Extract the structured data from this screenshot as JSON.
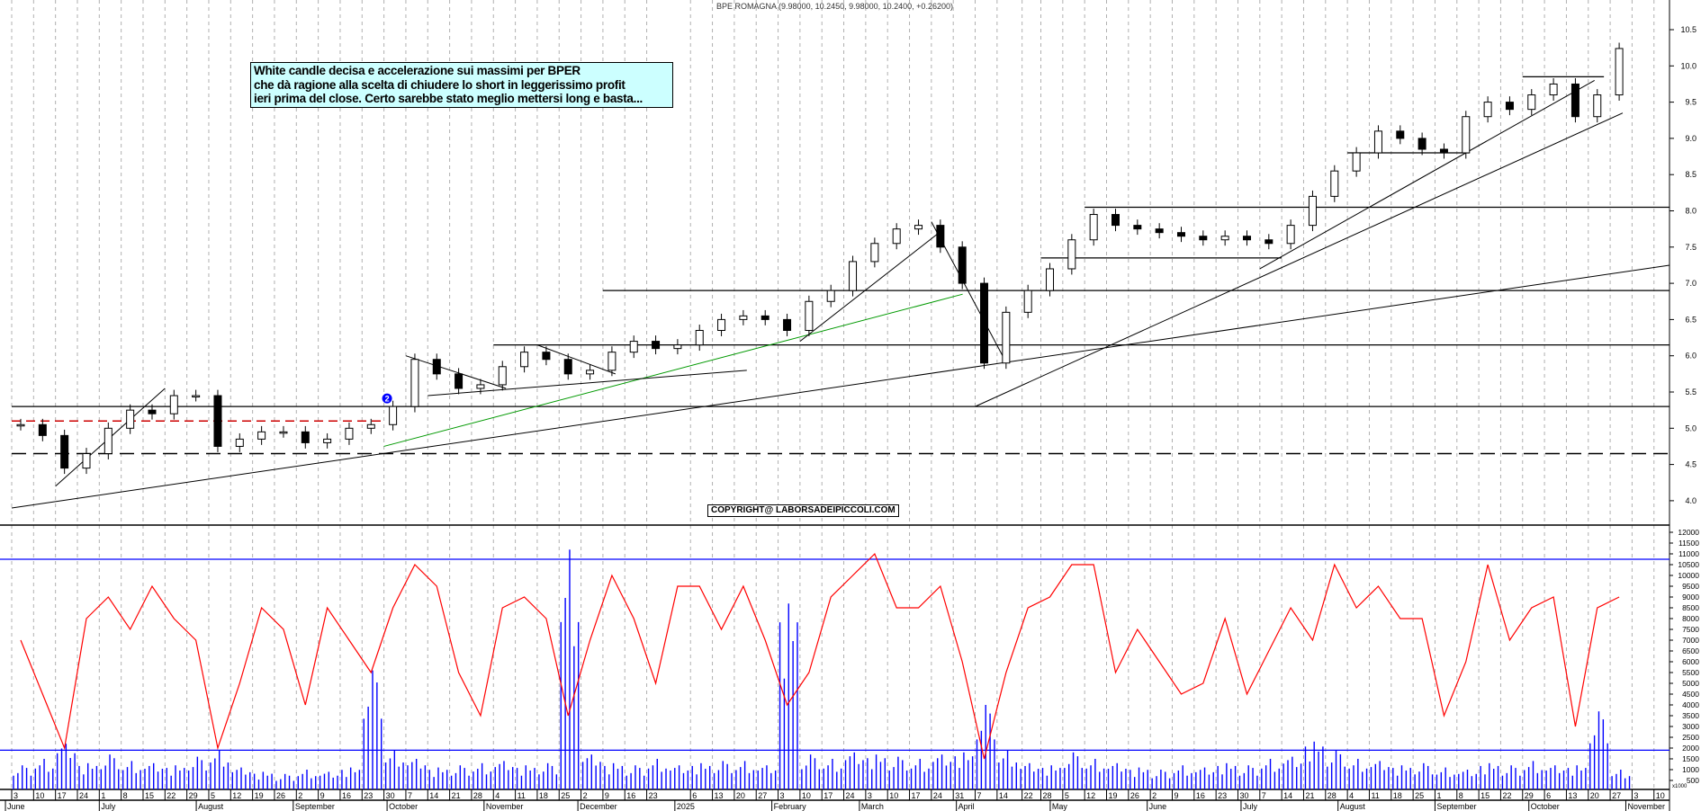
{
  "header": {
    "title": "BPE ROMAGNA (9.98000, 10.2450, 9.98000, 10.2400, +0.26200)"
  },
  "annotation": {
    "lines": [
      "White candle decisa e accelerazione sui massimi per BPER",
      "che dà ragione alla scelta di chiudere lo short in leggerissimo profit",
      "ieri prima del close. Certo sarebbe stato meglio mettersi long e basta..."
    ],
    "background": "#ccffff"
  },
  "copyright": "COPYRIGHT@ LABORSADEIPICCOLI.COM",
  "marker": {
    "label": "2",
    "date": "2024-10-01",
    "color": "#0000ff"
  },
  "chart_data": [
    {
      "type": "candlestick",
      "panel": "price",
      "title": "",
      "ylim": [
        3.7,
        10.6
      ],
      "y_ticks": [
        "4.0",
        "4.5",
        "5.0",
        "5.5",
        "6.0",
        "6.5",
        "7.0",
        "7.5",
        "8.0",
        "8.5",
        "9.0",
        "9.5",
        "10.0",
        "10.5"
      ],
      "grid": "vertical dashed weekly",
      "colors": {
        "up": "#ffffff",
        "down": "#000000",
        "green_trend": "#009900",
        "red_level": "#cc0000"
      },
      "weekly_close": [
        [
          "2024-06-03",
          5.05
        ],
        [
          "2024-06-10",
          4.9
        ],
        [
          "2024-06-17",
          4.45
        ],
        [
          "2024-06-24",
          4.65
        ],
        [
          "2024-07-01",
          5.0
        ],
        [
          "2024-07-08",
          5.25
        ],
        [
          "2024-07-15",
          5.2
        ],
        [
          "2024-07-22",
          5.45
        ],
        [
          "2024-07-29",
          5.45
        ],
        [
          "2024-08-05",
          4.75
        ],
        [
          "2024-08-12",
          4.85
        ],
        [
          "2024-08-19",
          4.95
        ],
        [
          "2024-08-26",
          4.95
        ],
        [
          "2024-09-02",
          4.8
        ],
        [
          "2024-09-09",
          4.85
        ],
        [
          "2024-09-16",
          5.0
        ],
        [
          "2024-09-23",
          5.05
        ],
        [
          "2024-09-30",
          5.3
        ],
        [
          "2024-10-07",
          5.95
        ],
        [
          "2024-10-14",
          5.75
        ],
        [
          "2024-10-21",
          5.55
        ],
        [
          "2024-10-28",
          5.6
        ],
        [
          "2024-11-04",
          5.85
        ],
        [
          "2024-11-11",
          6.05
        ],
        [
          "2024-11-18",
          5.95
        ],
        [
          "2024-11-25",
          5.75
        ],
        [
          "2024-12-02",
          5.8
        ],
        [
          "2024-12-09",
          6.05
        ],
        [
          "2024-12-16",
          6.2
        ],
        [
          "2024-12-23",
          6.1
        ],
        [
          "2024-12-30",
          6.15
        ],
        [
          "2025-01-06",
          6.35
        ],
        [
          "2025-01-13",
          6.5
        ],
        [
          "2025-01-20",
          6.55
        ],
        [
          "2025-01-27",
          6.5
        ],
        [
          "2025-02-03",
          6.35
        ],
        [
          "2025-02-10",
          6.75
        ],
        [
          "2025-02-17",
          6.9
        ],
        [
          "2025-02-24",
          7.3
        ],
        [
          "2025-03-03",
          7.55
        ],
        [
          "2025-03-10",
          7.75
        ],
        [
          "2025-03-17",
          7.8
        ],
        [
          "2025-03-24",
          7.5
        ],
        [
          "2025-03-31",
          7.0
        ],
        [
          "2025-04-07",
          5.9
        ],
        [
          "2025-04-14",
          6.6
        ],
        [
          "2025-04-21",
          6.9
        ],
        [
          "2025-04-28",
          7.2
        ],
        [
          "2025-05-05",
          7.6
        ],
        [
          "2025-05-12",
          7.95
        ],
        [
          "2025-05-19",
          7.8
        ],
        [
          "2025-05-26",
          7.75
        ],
        [
          "2025-06-02",
          7.7
        ],
        [
          "2025-06-09",
          7.65
        ],
        [
          "2025-06-16",
          7.6
        ],
        [
          "2025-06-23",
          7.65
        ],
        [
          "2025-06-30",
          7.6
        ],
        [
          "2025-07-07",
          7.55
        ],
        [
          "2025-07-14",
          7.8
        ],
        [
          "2025-07-21",
          8.2
        ],
        [
          "2025-07-28",
          8.55
        ],
        [
          "2025-08-04",
          8.8
        ],
        [
          "2025-08-11",
          9.1
        ],
        [
          "2025-08-18",
          9.0
        ],
        [
          "2025-08-25",
          8.85
        ],
        [
          "2025-09-01",
          8.8
        ],
        [
          "2025-09-08",
          9.3
        ],
        [
          "2025-09-15",
          9.5
        ],
        [
          "2025-09-22",
          9.4
        ],
        [
          "2025-09-29",
          9.6
        ],
        [
          "2025-10-06",
          9.75
        ],
        [
          "2025-10-13",
          9.3
        ],
        [
          "2025-10-20",
          9.6
        ],
        [
          "2025-10-27",
          10.24
        ]
      ],
      "horizontal_levels": [
        {
          "price": 8.05,
          "from": "2025-05-12",
          "style": "solid"
        },
        {
          "price": 6.9,
          "from": "2024-12-09",
          "style": "solid"
        },
        {
          "price": 6.15,
          "from": "2024-11-04",
          "style": "solid"
        },
        {
          "price": 5.3,
          "from": "2024-06-03",
          "style": "solid"
        },
        {
          "price": 4.65,
          "from": "2024-06-03",
          "style": "dashed"
        },
        {
          "price": 5.1,
          "from": "2024-06-03",
          "to": "2024-09-30",
          "style": "red-dashed"
        },
        {
          "price": 8.8,
          "from": "2025-08-04",
          "to": "2025-09-12",
          "style": "solid"
        },
        {
          "price": 9.85,
          "from": "2025-09-29",
          "to": "2025-10-25",
          "style": "solid"
        },
        {
          "price": 7.35,
          "from": "2025-04-28",
          "to": "2025-07-14",
          "style": "solid"
        }
      ],
      "trendlines": [
        {
          "from": [
            "2024-06-03",
            3.9
          ],
          "to": [
            "2025-11-17",
            7.25
          ],
          "color": "#000000"
        },
        {
          "from": [
            "2024-09-30",
            4.75
          ],
          "to": [
            "2025-04-03",
            6.85
          ],
          "color": "#009900"
        },
        {
          "from": [
            "2025-04-07",
            5.3
          ],
          "to": [
            "2025-10-31",
            9.35
          ],
          "color": "#000000"
        },
        {
          "from": [
            "2025-07-07",
            7.2
          ],
          "to": [
            "2025-10-22",
            9.8
          ],
          "color": "#000000"
        },
        {
          "from": [
            "2025-02-10",
            6.2
          ],
          "to": [
            "2025-03-28",
            7.75
          ],
          "color": "#000000"
        },
        {
          "from": [
            "2025-03-24",
            7.85
          ],
          "to": [
            "2025-04-17",
            5.9
          ],
          "color": "#000000"
        },
        {
          "from": [
            "2024-06-17",
            4.2
          ],
          "to": [
            "2024-07-22",
            5.55
          ],
          "color": "#000000"
        },
        {
          "from": [
            "2024-10-07",
            6.0
          ],
          "to": [
            "2024-11-08",
            5.55
          ],
          "color": "#000000"
        },
        {
          "from": [
            "2024-11-18",
            6.15
          ],
          "to": [
            "2024-12-13",
            5.75
          ],
          "color": "#000000"
        },
        {
          "from": [
            "2024-10-14",
            5.45
          ],
          "to": [
            "2025-01-24",
            5.8
          ],
          "color": "#000000"
        }
      ]
    },
    {
      "type": "line+bar",
      "panel": "volume",
      "ylim": [
        0,
        12000
      ],
      "y_ticks": [
        "500",
        "1000",
        "1500",
        "2000",
        "2500",
        "3000",
        "3500",
        "4000",
        "4500",
        "5000",
        "5500",
        "6000",
        "6500",
        "7000",
        "7500",
        "8000",
        "8500",
        "9000",
        "9500",
        "10000",
        "10500",
        "11000",
        "11500",
        "12000"
      ],
      "unit_label": "x1000",
      "reference_levels": [
        10750,
        1900
      ],
      "colors": {
        "oscillator": "#ff0000",
        "volume": "#0000ff",
        "levels": "#0000ff"
      },
      "oscillator_weekly": [
        7000,
        4500,
        2000,
        8000,
        9000,
        7500,
        9500,
        8000,
        7000,
        2000,
        5000,
        8500,
        7500,
        4000,
        8500,
        7000,
        5500,
        8500,
        10500,
        9500,
        5500,
        3500,
        8500,
        9000,
        8000,
        3500,
        7000,
        10000,
        8000,
        5000,
        9500,
        9500,
        7500,
        9500,
        7000,
        4000,
        5500,
        9000,
        10000,
        11000,
        8500,
        8500,
        9500,
        6000,
        1500,
        5500,
        8500,
        9000,
        10500,
        10500,
        5500,
        7500,
        6000,
        4500,
        5000,
        8000,
        4500,
        6500,
        8500,
        7000,
        10500,
        8500,
        9500,
        8000,
        8000,
        3500,
        6000,
        10500,
        7000,
        8500,
        9000,
        3000,
        8500,
        9000
      ],
      "volume_weekly": [
        1200,
        1500,
        2200,
        1300,
        1700,
        1400,
        1300,
        1200,
        1600,
        1900,
        1100,
        900,
        800,
        1000,
        900,
        1100,
        5600,
        1900,
        1500,
        1100,
        1200,
        1300,
        1400,
        1200,
        1300,
        11200,
        1700,
        1300,
        1200,
        1500,
        1200,
        1300,
        1400,
        1400,
        1200,
        8700,
        1700,
        1500,
        1800,
        1700,
        1600,
        1500,
        1700,
        1800,
        4000,
        1900,
        1300,
        1200,
        1800,
        1500,
        1300,
        1100,
        1000,
        1200,
        1100,
        1300,
        1200,
        1500,
        1600,
        2300,
        1900,
        1500,
        1400,
        1200,
        1300,
        1100,
        1000,
        1300,
        1200,
        1400,
        1200,
        1200,
        3700,
        1000
      ]
    }
  ],
  "x_axis": {
    "day_ticks": [
      [
        "3",
        "2024-06-03"
      ],
      [
        "10",
        "2024-06-10"
      ],
      [
        "17",
        "2024-06-17"
      ],
      [
        "24",
        "2024-06-24"
      ],
      [
        "1",
        "2024-07-01"
      ],
      [
        "8",
        "2024-07-08"
      ],
      [
        "15",
        "2024-07-15"
      ],
      [
        "22",
        "2024-07-22"
      ],
      [
        "29",
        "2024-07-29"
      ],
      [
        "5",
        "2024-08-05"
      ],
      [
        "12",
        "2024-08-12"
      ],
      [
        "19",
        "2024-08-19"
      ],
      [
        "26",
        "2024-08-26"
      ],
      [
        "2",
        "2024-09-02"
      ],
      [
        "9",
        "2024-09-09"
      ],
      [
        "16",
        "2024-09-16"
      ],
      [
        "23",
        "2024-09-23"
      ],
      [
        "30",
        "2024-09-30"
      ],
      [
        "7",
        "2024-10-07"
      ],
      [
        "14",
        "2024-10-14"
      ],
      [
        "21",
        "2024-10-21"
      ],
      [
        "28",
        "2024-10-28"
      ],
      [
        "4",
        "2024-11-04"
      ],
      [
        "11",
        "2024-11-11"
      ],
      [
        "18",
        "2024-11-18"
      ],
      [
        "25",
        "2024-11-25"
      ],
      [
        "2",
        "2024-12-02"
      ],
      [
        "9",
        "2024-12-09"
      ],
      [
        "16",
        "2024-12-16"
      ],
      [
        "23",
        "2024-12-23"
      ],
      [
        "6",
        "2025-01-06"
      ],
      [
        "13",
        "2025-01-13"
      ],
      [
        "20",
        "2025-01-20"
      ],
      [
        "27",
        "2025-01-27"
      ],
      [
        "3",
        "2025-02-03"
      ],
      [
        "10",
        "2025-02-10"
      ],
      [
        "17",
        "2025-02-17"
      ],
      [
        "24",
        "2025-02-24"
      ],
      [
        "3",
        "2025-03-03"
      ],
      [
        "10",
        "2025-03-10"
      ],
      [
        "17",
        "2025-03-17"
      ],
      [
        "24",
        "2025-03-24"
      ],
      [
        "31",
        "2025-03-31"
      ],
      [
        "7",
        "2025-04-07"
      ],
      [
        "14",
        "2025-04-14"
      ],
      [
        "22",
        "2025-04-22"
      ],
      [
        "28",
        "2025-04-28"
      ],
      [
        "5",
        "2025-05-05"
      ],
      [
        "12",
        "2025-05-12"
      ],
      [
        "19",
        "2025-05-19"
      ],
      [
        "26",
        "2025-05-26"
      ],
      [
        "2",
        "2025-06-02"
      ],
      [
        "9",
        "2025-06-09"
      ],
      [
        "16",
        "2025-06-16"
      ],
      [
        "23",
        "2025-06-23"
      ],
      [
        "30",
        "2025-06-30"
      ],
      [
        "7",
        "2025-07-07"
      ],
      [
        "14",
        "2025-07-14"
      ],
      [
        "21",
        "2025-07-21"
      ],
      [
        "28",
        "2025-07-28"
      ],
      [
        "4",
        "2025-08-04"
      ],
      [
        "11",
        "2025-08-11"
      ],
      [
        "18",
        "2025-08-18"
      ],
      [
        "25",
        "2025-08-25"
      ],
      [
        "1",
        "2025-09-01"
      ],
      [
        "8",
        "2025-09-08"
      ],
      [
        "15",
        "2025-09-15"
      ],
      [
        "22",
        "2025-09-22"
      ],
      [
        "29",
        "2025-09-29"
      ],
      [
        "6",
        "2025-10-06"
      ],
      [
        "13",
        "2025-10-13"
      ],
      [
        "20",
        "2025-10-20"
      ],
      [
        "27",
        "2025-10-27"
      ],
      [
        "3",
        "2025-11-03"
      ],
      [
        "10",
        "2025-11-10"
      ]
    ],
    "months": [
      [
        "June",
        "2024-06-01"
      ],
      [
        "July",
        "2024-07-01"
      ],
      [
        "August",
        "2024-08-01"
      ],
      [
        "September",
        "2024-09-01"
      ],
      [
        "October",
        "2024-10-01"
      ],
      [
        "November",
        "2024-11-01"
      ],
      [
        "December",
        "2024-12-01"
      ],
      [
        "2025",
        "2025-01-01"
      ],
      [
        "February",
        "2025-02-01"
      ],
      [
        "March",
        "2025-03-01"
      ],
      [
        "April",
        "2025-04-01"
      ],
      [
        "May",
        "2025-05-01"
      ],
      [
        "June",
        "2025-06-01"
      ],
      [
        "July",
        "2025-07-01"
      ],
      [
        "August",
        "2025-08-01"
      ],
      [
        "September",
        "2025-09-01"
      ],
      [
        "October",
        "2025-10-01"
      ],
      [
        "November",
        "2025-11-01"
      ]
    ]
  }
}
